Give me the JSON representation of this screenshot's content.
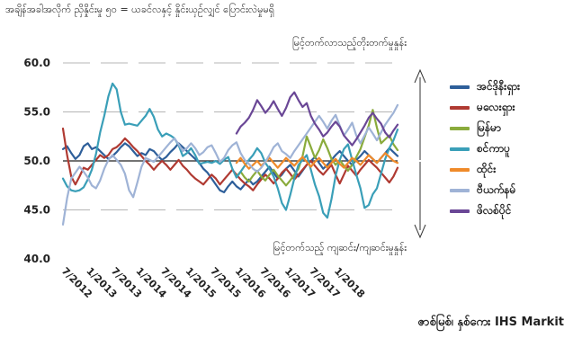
{
  "chart_data": {
    "type": "line",
    "title": "အချိန်အခါအလိုက် ညှိနှိုင်းမှု ၅၀ = ယခင်လနှင့် နှိုင်းယှဉ်လျှင် ပြောင်းလဲမှုမရှိ",
    "source": "ဇာစ်မြစ်၊ နှစ်ကေး IHS Markit",
    "annotation_up": "မြင့်တက်လာသည့်တိုးတက်မှုနှုန်း",
    "annotation_down": "မြင့်တက်သည့် ကျဆင်း/ကျဆင်းမှုနှုန်း",
    "y_ticks": [
      "60.0",
      "55.0",
      "50.0",
      "45.0",
      "40.0"
    ],
    "x_ticks": [
      "7/2012",
      "1/2013",
      "7/2013",
      "1/2014",
      "7/2014",
      "1/2015",
      "7/2015",
      "1/2016",
      "7/2016",
      "1/2017",
      "7/2017",
      "1/2018"
    ],
    "ylim": [
      40,
      60
    ],
    "reference_line": 50,
    "grid": "dashed horizontal",
    "legend_position": "right",
    "series": [
      {
        "name": "အင်ဒိုနီးရှား",
        "color": "#2e5f9a",
        "start_month": 0,
        "values": [
          51.2,
          51.5,
          50.8,
          50.2,
          50.6,
          51.5,
          51.8,
          51.2,
          51.4,
          51.0,
          50.6,
          50.2,
          50.5,
          50.9,
          51.4,
          51.8,
          51.5,
          51.0,
          50.5,
          50.8,
          50.6,
          51.2,
          51.0,
          50.5,
          50.1,
          50.4,
          50.9,
          51.3,
          51.8,
          51.4,
          51.0,
          50.6,
          50.2,
          49.8,
          49.2,
          48.8,
          48.2,
          47.6,
          47.0,
          46.8,
          47.4,
          47.9,
          47.4,
          47.1,
          47.6,
          48.1,
          47.6,
          47.9,
          48.4,
          48.9,
          49.4,
          48.8,
          48.2,
          48.6,
          49.2,
          49.6,
          49.0,
          48.4,
          49.0,
          49.6,
          50.0,
          50.4,
          49.8,
          49.2,
          49.6,
          50.1,
          50.6,
          51.0,
          50.5,
          50.0,
          49.6,
          50.1,
          50.5,
          51.0,
          50.6,
          50.2,
          49.8,
          50.3,
          50.8,
          51.3,
          50.9,
          50.5
        ]
      },
      {
        "name": "မလေးရှား",
        "color": "#b03a32",
        "start_month": 0,
        "values": [
          53.3,
          50.6,
          48.4,
          47.6,
          48.4,
          49.3,
          49.1,
          49.6,
          50.1,
          50.6,
          50.3,
          50.6,
          51.2,
          51.4,
          51.8,
          52.3,
          51.9,
          51.4,
          51.0,
          50.5,
          50.0,
          49.6,
          49.1,
          49.6,
          50.0,
          49.6,
          49.1,
          49.6,
          50.1,
          49.5,
          49.1,
          48.6,
          48.2,
          47.9,
          47.6,
          48.1,
          48.6,
          48.2,
          47.6,
          48.1,
          48.6,
          49.1,
          48.6,
          48.1,
          47.7,
          47.4,
          47.0,
          47.6,
          48.1,
          48.6,
          48.2,
          47.7,
          48.2,
          48.8,
          49.2,
          48.7,
          48.1,
          48.6,
          49.1,
          49.6,
          50.0,
          49.5,
          49.0,
          48.6,
          49.1,
          49.6,
          48.6,
          47.7,
          48.6,
          49.5,
          49.0,
          48.5,
          49.1,
          49.6,
          50.1,
          49.7,
          49.3,
          48.8,
          48.3,
          47.8,
          48.4,
          49.3
        ]
      },
      {
        "name": "မြန်မာ",
        "color": "#8aab3c",
        "start_month": 42,
        "values": [
          48.4,
          48.9,
          48.3,
          47.9,
          48.5,
          49.0,
          48.4,
          48.0,
          48.6,
          49.1,
          48.5,
          48.0,
          47.5,
          48.0,
          48.6,
          49.2,
          50.5,
          52.5,
          51.4,
          50.3,
          51.1,
          52.2,
          51.3,
          50.2,
          49.6,
          50.1,
          49.5,
          49.0,
          49.6,
          50.4,
          51.2,
          52.4,
          53.6,
          55.2,
          53.4,
          51.8,
          52.2,
          52.6,
          51.7,
          51.1
        ]
      },
      {
        "name": "စင်ကာပူ",
        "color": "#3a9fb8",
        "start_month": 0,
        "values": [
          48.2,
          47.4,
          47.0,
          46.9,
          47.0,
          47.3,
          48.1,
          49.1,
          50.7,
          52.9,
          54.6,
          56.6,
          57.9,
          57.3,
          55.0,
          53.7,
          53.8,
          53.7,
          53.6,
          54.1,
          54.6,
          55.3,
          54.5,
          53.2,
          52.5,
          52.8,
          52.6,
          52.3,
          51.6,
          50.5,
          50.8,
          51.3,
          50.6,
          49.7,
          49.8,
          49.9,
          49.8,
          50.0,
          49.7,
          50.1,
          50.4,
          49.2,
          48.3,
          48.9,
          49.5,
          50.1,
          50.6,
          51.3,
          50.8,
          49.8,
          49.2,
          48.4,
          47.2,
          45.7,
          45.0,
          46.5,
          48.2,
          49.6,
          50.1,
          50.6,
          49.1,
          47.6,
          46.4,
          44.7,
          44.2,
          46.1,
          48.5,
          50.1,
          51.2,
          51.7,
          50.1,
          48.6,
          47.2,
          45.2,
          45.5,
          46.6,
          47.2,
          48.7,
          50.2,
          51.3,
          52.1,
          53.2
        ]
      },
      {
        "name": "ထိုင်း",
        "color": "#ef8a2a",
        "start_month": 42,
        "values": [
          49.8,
          50.3,
          49.7,
          49.2,
          49.6,
          50.0,
          49.5,
          49.9,
          50.3,
          49.8,
          49.3,
          49.8,
          50.3,
          49.9,
          49.5,
          50.0,
          50.4,
          49.9,
          49.4,
          49.9,
          50.3,
          49.8,
          49.3,
          49.8,
          50.2,
          49.7,
          49.3,
          49.8,
          50.3,
          50.0,
          49.6,
          50.1,
          50.6,
          50.2,
          49.8,
          50.3,
          50.8,
          50.4,
          50.0,
          49.8
        ]
      },
      {
        "name": "ဗီယက်နမ်",
        "color": "#9fb3d6",
        "start_month": 0,
        "values": [
          43.5,
          46.2,
          48.2,
          48.8,
          49.4,
          48.9,
          48.3,
          47.5,
          47.2,
          48.0,
          49.2,
          50.1,
          50.6,
          50.1,
          49.6,
          48.7,
          47.0,
          46.3,
          47.8,
          49.4,
          50.3,
          50.1,
          49.9,
          50.4,
          50.9,
          51.4,
          51.9,
          52.3,
          51.7,
          51.0,
          51.3,
          51.8,
          51.3,
          50.6,
          50.9,
          51.4,
          51.6,
          50.8,
          49.9,
          50.3,
          51.1,
          51.6,
          51.9,
          50.8,
          50.1,
          49.7,
          49.2,
          48.9,
          49.3,
          49.9,
          50.6,
          51.4,
          51.8,
          51.0,
          50.7,
          50.3,
          51.0,
          51.6,
          52.2,
          52.8,
          53.4,
          54.0,
          54.6,
          54.0,
          53.3,
          54.1,
          54.7,
          53.6,
          52.6,
          53.2,
          53.9,
          52.6,
          51.8,
          52.6,
          53.4,
          52.8,
          52.1,
          52.9,
          53.7,
          54.3,
          54.9,
          55.7
        ]
      },
      {
        "name": "ဖိလစ်ပိုင်",
        "color": "#6a4796",
        "start_month": 42,
        "values": [
          52.8,
          53.5,
          53.9,
          54.4,
          55.2,
          56.2,
          55.6,
          54.9,
          55.4,
          56.1,
          55.3,
          54.6,
          55.4,
          56.5,
          57.0,
          56.2,
          55.5,
          55.9,
          54.6,
          53.8,
          53.2,
          52.5,
          52.9,
          53.5,
          54.0,
          53.5,
          52.6,
          52.1,
          51.6,
          52.2,
          52.9,
          53.6,
          54.4,
          54.9,
          54.3,
          53.8,
          52.9,
          52.4,
          53.1,
          53.7
        ]
      }
    ]
  }
}
